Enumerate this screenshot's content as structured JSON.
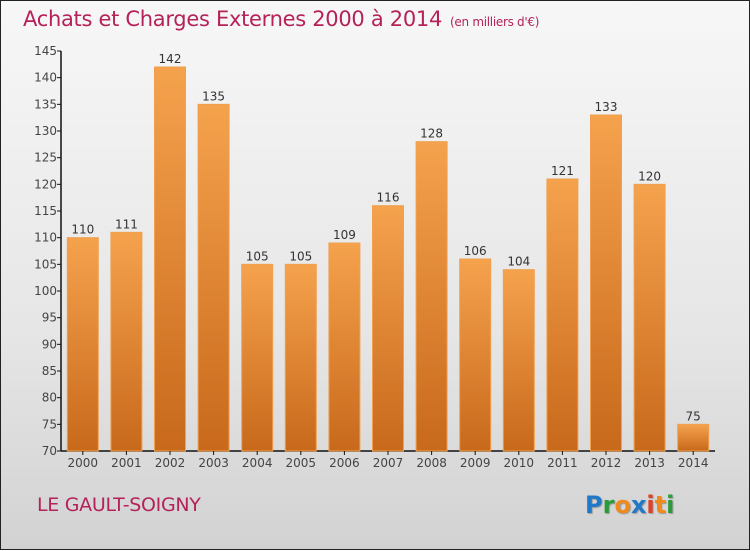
{
  "header": {
    "title": "Achats et Charges Externes 2000 à 2014",
    "subtitle": "(en milliers d'€)"
  },
  "footer": {
    "place": "LE GAULT-SOIGNY",
    "logo": "Proxiti"
  },
  "colors": {
    "bar_top": "#f5a24d",
    "bar_bottom": "#c8691b",
    "title": "#b5225a"
  },
  "chart_data": {
    "type": "bar",
    "title": "Achats et Charges Externes 2000 à 2014 (en milliers d'€)",
    "xlabel": "",
    "ylabel": "",
    "categories": [
      "2000",
      "2001",
      "2002",
      "2003",
      "2004",
      "2005",
      "2006",
      "2007",
      "2008",
      "2009",
      "2010",
      "2011",
      "2012",
      "2013",
      "2014"
    ],
    "values": [
      110,
      111,
      142,
      135,
      105,
      105,
      109,
      116,
      128,
      106,
      104,
      121,
      133,
      120,
      75
    ],
    "ylim": [
      70,
      145
    ],
    "yticks": [
      70,
      75,
      80,
      85,
      90,
      95,
      100,
      105,
      110,
      115,
      120,
      125,
      130,
      135,
      140,
      145
    ],
    "grid": false,
    "legend": "none"
  }
}
